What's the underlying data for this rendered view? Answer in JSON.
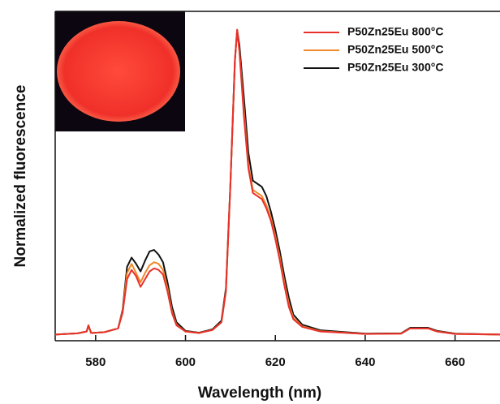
{
  "chart_data": {
    "type": "line",
    "xlabel": "Wavelength (nm)",
    "ylabel": "Normalized fluorescence",
    "x": [
      571,
      576,
      578,
      578.4,
      579,
      582,
      585,
      586,
      587,
      588,
      589,
      590,
      591,
      592,
      593,
      594,
      595,
      596,
      597,
      598,
      600,
      603,
      606,
      608,
      609,
      610,
      611,
      611.5,
      612,
      613,
      614,
      615,
      616,
      617,
      618,
      619,
      620,
      621,
      622,
      623,
      624,
      626,
      630,
      640,
      648,
      650,
      652,
      654,
      656,
      660,
      670
    ],
    "series": [
      {
        "name": "P50Zn25Eu 800°C",
        "color": "#e8312a",
        "values": [
          0.01,
          0.014,
          0.02,
          0.04,
          0.015,
          0.018,
          0.03,
          0.08,
          0.19,
          0.22,
          0.2,
          0.165,
          0.19,
          0.215,
          0.225,
          0.22,
          0.205,
          0.15,
          0.08,
          0.04,
          0.02,
          0.015,
          0.025,
          0.05,
          0.15,
          0.5,
          0.9,
          1.0,
          0.93,
          0.72,
          0.55,
          0.47,
          0.46,
          0.45,
          0.42,
          0.38,
          0.32,
          0.25,
          0.17,
          0.1,
          0.06,
          0.035,
          0.02,
          0.012,
          0.013,
          0.03,
          0.03,
          0.03,
          0.02,
          0.012,
          0.01
        ]
      },
      {
        "name": "P50Zn25Eu 500°C",
        "color": "#f0892a",
        "values": [
          0.01,
          0.014,
          0.02,
          0.04,
          0.015,
          0.018,
          0.03,
          0.085,
          0.21,
          0.24,
          0.21,
          0.18,
          0.21,
          0.235,
          0.245,
          0.24,
          0.22,
          0.16,
          0.085,
          0.042,
          0.02,
          0.015,
          0.025,
          0.05,
          0.15,
          0.5,
          0.9,
          1.0,
          0.93,
          0.74,
          0.56,
          0.48,
          0.47,
          0.46,
          0.43,
          0.39,
          0.33,
          0.26,
          0.18,
          0.11,
          0.065,
          0.037,
          0.021,
          0.012,
          0.013,
          0.03,
          0.03,
          0.03,
          0.02,
          0.012,
          0.01
        ]
      },
      {
        "name": "P50Zn25Eu 300°C",
        "color": "#111111",
        "values": [
          0.01,
          0.014,
          0.02,
          0.04,
          0.015,
          0.018,
          0.03,
          0.09,
          0.23,
          0.26,
          0.24,
          0.215,
          0.25,
          0.28,
          0.285,
          0.27,
          0.245,
          0.18,
          0.1,
          0.05,
          0.022,
          0.016,
          0.027,
          0.055,
          0.16,
          0.5,
          0.9,
          1.0,
          0.95,
          0.78,
          0.6,
          0.51,
          0.5,
          0.49,
          0.46,
          0.41,
          0.35,
          0.28,
          0.2,
          0.13,
          0.075,
          0.042,
          0.024,
          0.013,
          0.014,
          0.032,
          0.032,
          0.032,
          0.022,
          0.013,
          0.01
        ]
      }
    ],
    "xlim": [
      571,
      670
    ],
    "ylim": [
      -0.01,
      1.06
    ],
    "xticks": [
      580,
      600,
      620,
      640,
      660
    ]
  }
}
